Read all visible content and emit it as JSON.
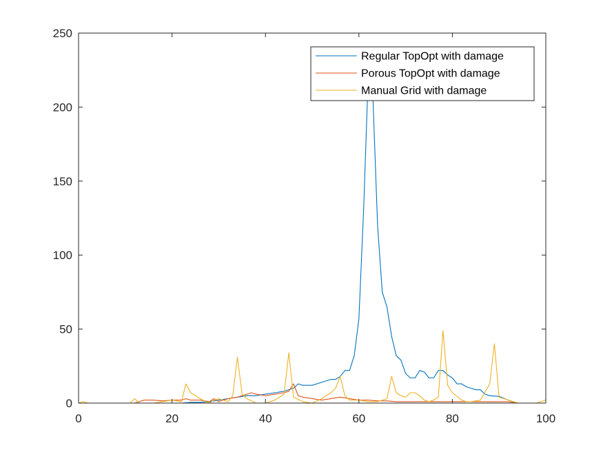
{
  "chart_data": {
    "type": "line",
    "title": "",
    "xlabel": "",
    "ylabel": "",
    "xlim": [
      0,
      100
    ],
    "ylim": [
      0,
      250
    ],
    "xticks": [
      0,
      20,
      40,
      60,
      80,
      100
    ],
    "yticks": [
      0,
      50,
      100,
      150,
      200,
      250
    ],
    "grid": false,
    "legend_position": "top-right",
    "series": [
      {
        "name": "Regular TopOpt with damage",
        "color": "#0072BD",
        "x": [
          0,
          2,
          4,
          6,
          8,
          10,
          12,
          14,
          16,
          18,
          20,
          22,
          24,
          26,
          28,
          30,
          32,
          34,
          36,
          38,
          40,
          42,
          44,
          46,
          47,
          48,
          50,
          52,
          54,
          55,
          56,
          57,
          58,
          59,
          60,
          61,
          62,
          63,
          64,
          65,
          66,
          67,
          68,
          69,
          70,
          71,
          72,
          73,
          74,
          75,
          76,
          77,
          78,
          79,
          80,
          81,
          82,
          83,
          84,
          85,
          86,
          87,
          88,
          90,
          92,
          94,
          96,
          98,
          100
        ],
        "y": [
          0,
          0,
          0,
          0,
          0,
          0,
          0,
          0,
          0,
          0,
          0,
          0,
          0.5,
          0.5,
          1,
          2,
          3,
          4,
          5,
          5,
          6,
          7,
          8,
          10,
          13,
          12,
          12,
          14,
          16,
          16,
          18,
          22,
          22,
          32,
          57,
          130,
          222,
          207,
          120,
          75,
          65,
          45,
          32,
          29,
          20,
          17,
          17,
          22,
          21,
          17,
          17,
          22,
          22,
          19,
          17,
          13,
          13,
          11,
          10,
          9,
          9,
          6,
          5,
          4.5,
          2,
          0,
          0,
          0,
          0
        ]
      },
      {
        "name": "Porous TopOpt with damage",
        "color": "#D95319",
        "x": [
          0,
          2,
          4,
          6,
          8,
          10,
          12,
          13,
          14,
          16,
          18,
          20,
          22,
          23,
          24,
          26,
          28,
          29,
          30,
          32,
          34,
          36,
          37,
          38,
          40,
          42,
          44,
          45,
          46,
          47,
          48,
          50,
          52,
          54,
          56,
          58,
          60,
          62,
          64,
          66,
          68,
          70,
          72,
          74,
          76,
          78,
          80,
          82,
          84,
          86,
          88,
          90,
          92,
          94,
          96,
          98,
          100
        ],
        "y": [
          0,
          0,
          0,
          0,
          0,
          0,
          0,
          1,
          2,
          2,
          1.5,
          2,
          2,
          3,
          2,
          2,
          1,
          3,
          1,
          3,
          4,
          6,
          7,
          6,
          5,
          6,
          7,
          8,
          13,
          5,
          4,
          3,
          2,
          3,
          4,
          3,
          2,
          2,
          1.5,
          1.5,
          1,
          1,
          1,
          1,
          1,
          1,
          1,
          1,
          1,
          1,
          1,
          1,
          1,
          0,
          0,
          0,
          0
        ]
      },
      {
        "name": "Manual Grid with damage",
        "color": "#EDB120",
        "x": [
          0,
          1,
          2,
          4,
          6,
          8,
          10,
          11,
          12,
          13,
          14,
          16,
          18,
          20,
          22,
          23,
          24,
          26,
          28,
          29,
          30,
          32,
          33,
          34,
          35,
          36,
          38,
          40,
          42,
          44,
          45,
          46,
          48,
          50,
          52,
          54,
          55,
          56,
          57,
          58,
          60,
          62,
          64,
          66,
          67,
          68,
          69,
          70,
          71,
          72,
          73,
          74,
          75,
          76,
          77,
          78,
          79,
          80,
          82,
          83,
          84,
          86,
          88,
          89,
          90,
          92,
          94,
          96,
          98,
          100
        ],
        "y": [
          0,
          1,
          0,
          0,
          0,
          0,
          0,
          0,
          3,
          0,
          0,
          0,
          1,
          2,
          1,
          13,
          7,
          3,
          0,
          2,
          3,
          1,
          5,
          31,
          6,
          3,
          0,
          0,
          2,
          6,
          34,
          4,
          1,
          0,
          3,
          7,
          10,
          18,
          5,
          2,
          2,
          1,
          1,
          3,
          18,
          7,
          5,
          4,
          7,
          7,
          5,
          2,
          1,
          2,
          4,
          49,
          12,
          7,
          2,
          1,
          1,
          2,
          13,
          40,
          4,
          2,
          0,
          0,
          0,
          2
        ]
      }
    ]
  }
}
